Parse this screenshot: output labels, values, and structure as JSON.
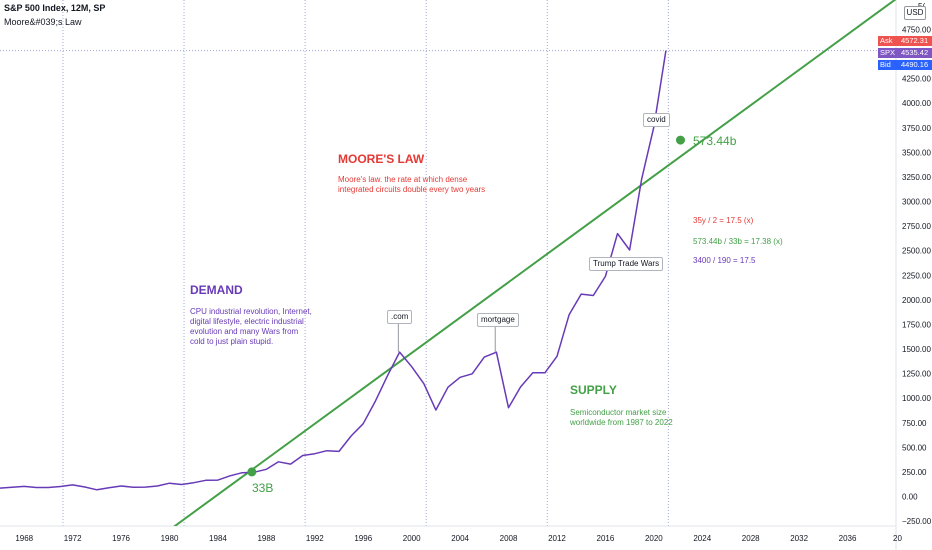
{
  "header": {
    "title": "S&P 500 Index, 12M, SP",
    "subtitle": "Moore&#039;s Law"
  },
  "currency_button": "USD",
  "price_tags": [
    {
      "label": "Ask",
      "value": "4572.31",
      "color": "#ef5350"
    },
    {
      "label": "SPX",
      "value": "4535.42",
      "color": "#7e57c2"
    },
    {
      "label": "Bid",
      "value": "4490.16",
      "color": "#2962ff"
    }
  ],
  "annotations": {
    "moores_title": "MOORE'S LAW",
    "moores_text": "Moore's law. the rate at which dense integrated circuits double every two years",
    "demand_title": "DEMAND",
    "demand_text": "CPU industrial revolution, Internet, digital lifestyle, electric industrial evolution and many Wars from cold to just plain stupid.",
    "supply_title": "SUPPLY",
    "supply_text": "Semiconductor market size worldwide from 1987 to 2022",
    "calc1": "35y / 2 = 17.5 (x)",
    "calc2": "573.44b / 33b = 17.38 (x)",
    "calc3": "3400 / 190 = 17.5",
    "bubble_com": ".com",
    "bubble_mortgage": "mortgage",
    "bubble_covid": "covid",
    "bubble_trump": "Trump Trade Wars",
    "label_33b": "33B",
    "label_573": "573.44b"
  },
  "colors": {
    "spx_line": "#673ab7",
    "moore_line": "#43a047",
    "vlines": "#9fa8da",
    "moores_title": "#e53935",
    "demand": "#673ab7",
    "supply": "#43a047",
    "calc1": "#e53935",
    "calc2": "#43a047",
    "calc3": "#673ab7"
  },
  "chart_data": {
    "type": "line",
    "title": "S&P 500 Index, 12M, SP",
    "xlim": [
      1966,
      2040
    ],
    "ylim": [
      -300,
      5050
    ],
    "x_ticks": [
      1968,
      1972,
      1976,
      1980,
      1984,
      1988,
      1992,
      1996,
      2000,
      2004,
      2008,
      2012,
      2016,
      2020,
      2024,
      2028,
      2032,
      2036
    ],
    "y_ticks": [
      -250,
      0,
      250,
      500,
      750,
      1000,
      1250,
      1500,
      1750,
      2000,
      2250,
      2500,
      2750,
      3000,
      3250,
      3500,
      3750,
      4000,
      4250,
      4500,
      4750
    ],
    "y_tick_labels": [
      "−250.00",
      "0.00",
      "250.00",
      "500.00",
      "750.00",
      "1000.00",
      "1250.00",
      "1500.00",
      "1750.00",
      "2000.00",
      "2250.00",
      "2500.00",
      "2750.00",
      "3000.00",
      "3250.00",
      "3500.00",
      "3750.00",
      "4000.00",
      "4250.00",
      "4500.00",
      "4750.00"
    ],
    "clipped_edge_labels": {
      "y_top": "5(",
      "x_right": "20"
    },
    "vertical_lines_years": [
      1971.2,
      1981.2,
      1991.2,
      2001.2,
      2011.2,
      2021.2
    ],
    "horizontal_line_value": 4535,
    "series": [
      {
        "name": "S&P 500 Index",
        "x": [
          1966,
          1967,
          1968,
          1969,
          1970,
          1971,
          1972,
          1973,
          1974,
          1975,
          1976,
          1977,
          1978,
          1979,
          1980,
          1981,
          1982,
          1983,
          1984,
          1985,
          1986,
          1987,
          1988,
          1989,
          1990,
          1991,
          1992,
          1993,
          1994,
          1995,
          1996,
          1997,
          1998,
          1999,
          2000,
          2001,
          2002,
          2003,
          2004,
          2005,
          2006,
          2007,
          2008,
          2009,
          2010,
          2011,
          2012,
          2013,
          2014,
          2015,
          2016,
          2017,
          2018,
          2019,
          2020,
          2021
        ],
        "values": [
          85,
          95,
          103,
          92,
          92,
          102,
          118,
          97,
          68,
          90,
          107,
          95,
          96,
          107,
          135,
          122,
          140,
          165,
          167,
          211,
          242,
          247,
          277,
          353,
          330,
          417,
          435,
          466,
          459,
          615,
          740,
          970,
          1229,
          1469,
          1320,
          1148,
          880,
          1112,
          1212,
          1248,
          1418,
          1468,
          903,
          1115,
          1258,
          1258,
          1426,
          1848,
          2059,
          2044,
          2239,
          2674,
          2507,
          3231,
          3756,
          4535
        ]
      },
      {
        "name": "Moore's Law trend",
        "x": [
          1980,
          2040
        ],
        "values": [
          -340,
          5060
        ]
      }
    ],
    "markers": [
      {
        "label": "33B",
        "x": 1986.8,
        "y": 250
      },
      {
        "label": "573.44b",
        "x": 2022.2,
        "y": 3625
      }
    ]
  }
}
